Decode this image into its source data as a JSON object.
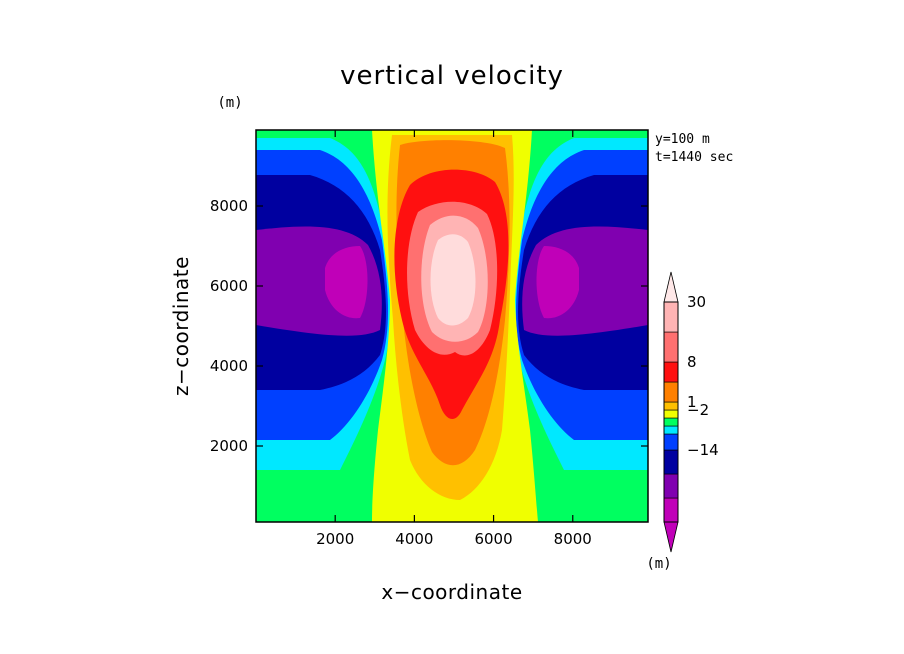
{
  "chart_data": {
    "type": "heatmap",
    "title": "vertical velocity",
    "xlabel": "x−coordinate",
    "ylabel": "z−coordinate",
    "y_unit": "(m)",
    "colorbar_unit": "(m)",
    "annotations": [
      "y=100 m",
      "t=1440 sec"
    ],
    "xlim": [
      0,
      9900
    ],
    "ylim": [
      100,
      9900
    ],
    "x_ticks": [
      {
        "value": 2000,
        "label": "2000"
      },
      {
        "value": 4000,
        "label": "4000"
      },
      {
        "value": 6000,
        "label": "6000"
      },
      {
        "value": 8000,
        "label": "8000"
      }
    ],
    "y_ticks": [
      {
        "value": 2000,
        "label": "2000"
      },
      {
        "value": 4000,
        "label": "4000"
      },
      {
        "value": 6000,
        "label": "6000"
      },
      {
        "value": 8000,
        "label": "8000"
      }
    ],
    "colorbar": {
      "colors": [
        "#c000b8",
        "#8000b0",
        "#0000a0",
        "#0040ff",
        "#00e8ff",
        "#00ff60",
        "#f0ff00",
        "#ffc000",
        "#ff8000",
        "#ff1010",
        "#ff7070",
        "#ffb4b4"
      ],
      "labels": [
        {
          "text": "30",
          "after_level": 11
        },
        {
          "text": "8",
          "after_level": 9
        },
        {
          "text": "1",
          "after_level": 7
        },
        {
          "text": "−2",
          "after_level": 6
        },
        {
          "text": "−14",
          "after_level": 2
        }
      ]
    },
    "field": {
      "description_only": false,
      "center_x": 5000,
      "updraft_peak": 30,
      "downdraft_min": -14
    }
  }
}
